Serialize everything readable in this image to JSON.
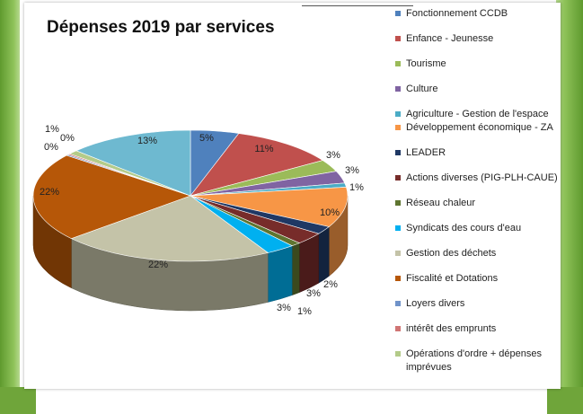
{
  "chart_data": {
    "type": "pie",
    "title": "Dépenses 2019 par services",
    "legend_position": "right",
    "three_d": true,
    "slices": [
      {
        "label": "Fonctionnement CCDB",
        "value": 5,
        "color": "#4f81bd"
      },
      {
        "label": "Enfance - Jeunesse",
        "value": 11,
        "color": "#c0504d"
      },
      {
        "label": "Tourisme",
        "value": 3,
        "color": "#9bbb59"
      },
      {
        "label": "Culture",
        "value": 3,
        "color": "#8064a2"
      },
      {
        "label": "Agriculture - Gestion de l'espace",
        "value": 1,
        "color": "#4bacc6"
      },
      {
        "label": "Développement économique - ZA",
        "value": 10,
        "color": "#f79646"
      },
      {
        "label": "LEADER",
        "value": 2,
        "color": "#1f3864"
      },
      {
        "label": "Actions diverses (PIG-PLH-CAUE)",
        "value": 3,
        "color": "#772c2a"
      },
      {
        "label": "Réseau chaleur",
        "value": 1,
        "color": "#5f7530"
      },
      {
        "label": "Syndicats des cours d'eau",
        "value": 3,
        "color": "#00b0f0"
      },
      {
        "label": "Gestion des déchets",
        "value": 22,
        "color": "#c4c3a8"
      },
      {
        "label": "Fiscalité et Dotations",
        "value": 22,
        "color": "#b65708"
      },
      {
        "label": "Loyers divers",
        "value": 0,
        "color": "#7093c9"
      },
      {
        "label": "intérêt des emprunts",
        "value": 0,
        "color": "#d07574"
      },
      {
        "label": "Opérations d'ordre + dépenses imprévues",
        "value": 1,
        "color": "#b3cb89"
      },
      {
        "label": "",
        "value": 13,
        "color": "#6eb9d0"
      }
    ],
    "data_labels": [
      "5%",
      "11%",
      "3%",
      "3%",
      "1%",
      "10%",
      "2%",
      "3%",
      "1%",
      "3%",
      "22%",
      "22%",
      "0%",
      "0%",
      "1%",
      "13%"
    ]
  }
}
